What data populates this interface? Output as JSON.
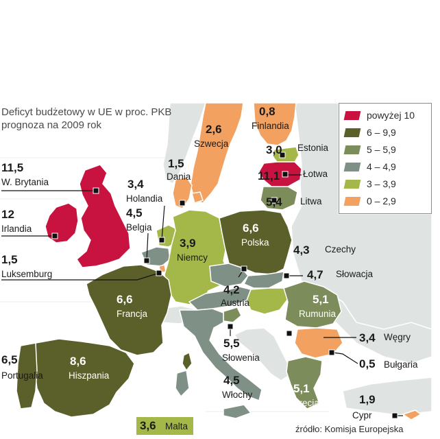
{
  "title": {
    "line1": "Deficyt budżetowy w UE w proc. PKB",
    "line2": "prognoza na 2009 rok"
  },
  "legend": [
    {
      "label": "powyżej 10",
      "color": "#c8123f"
    },
    {
      "label": "6 – 9,9",
      "color": "#5b5f2a"
    },
    {
      "label": "5 – 5,9",
      "color": "#7c8c5b"
    },
    {
      "label": "4 – 4,9",
      "color": "#7f9187"
    },
    {
      "label": "3 – 3,9",
      "color": "#a4b84a"
    },
    {
      "label": "0 – 2,9",
      "color": "#f2a160"
    }
  ],
  "countries": {
    "finlandia": {
      "name": "Finlandia",
      "value": "0,8"
    },
    "szwecja": {
      "name": "Szwecja",
      "value": "2,6"
    },
    "estonia": {
      "name": "Estonia",
      "value": "3,0"
    },
    "lotwa": {
      "name": "Łotwa",
      "value": "11,1"
    },
    "litwa": {
      "name": "Litwa",
      "value": "5,4"
    },
    "dania": {
      "name": "Dania",
      "value": "1,5"
    },
    "wbrytania": {
      "name": "W. Brytania",
      "value": "11,5"
    },
    "irlandia": {
      "name": "Irlandia",
      "value": "12"
    },
    "holandia": {
      "name": "Holandia",
      "value": "3,4"
    },
    "belgia": {
      "name": "Belgia",
      "value": "4,5"
    },
    "luksemburg": {
      "name": "Luksemburg",
      "value": "1,5"
    },
    "niemcy": {
      "name": "Niemcy",
      "value": "3,9"
    },
    "polska": {
      "name": "Polska",
      "value": "6,6"
    },
    "czechy": {
      "name": "Czechy",
      "value": "4,3"
    },
    "slowacja": {
      "name": "Słowacja",
      "value": "4,7"
    },
    "austria": {
      "name": "Austria",
      "value": "4,2"
    },
    "francja": {
      "name": "Francja",
      "value": "6,6"
    },
    "rumunia": {
      "name": "Rumunia",
      "value": "5,1"
    },
    "wegry": {
      "name": "Węgry",
      "value": "3,4"
    },
    "bulgaria": {
      "name": "Bułgaria",
      "value": "0,5"
    },
    "slowenia": {
      "name": "Słowenia",
      "value": "5,5"
    },
    "portugalia": {
      "name": "Portugalia",
      "value": "6,5"
    },
    "hiszpania": {
      "name": "Hiszpania",
      "value": "8,6"
    },
    "wlochy": {
      "name": "Włochy",
      "value": "4,5"
    },
    "grecja": {
      "name": "Grecja",
      "value": "5,1"
    },
    "cypr": {
      "name": "Cypr",
      "value": "1,9"
    },
    "malta": {
      "name": "Malta",
      "value": "3,6"
    }
  },
  "source": "źródło: Komisja Europejska"
}
